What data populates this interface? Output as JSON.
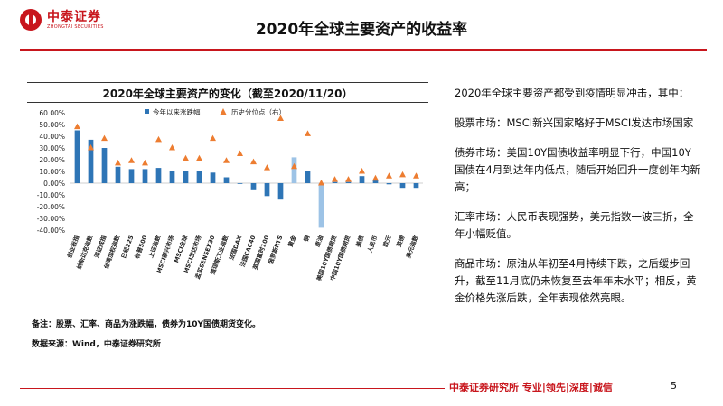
{
  "header": {
    "brand_cn": "中泰证券",
    "brand_en": "ZHONGTAI SECURITIES",
    "title": "2020年全球主要资产的收益率"
  },
  "chart_meta": {
    "title": "2020年全球主要资产的变化（截至2020/11/20）",
    "legend_bar": "今年以来涨跌幅",
    "legend_point": "历史分位点（右）",
    "note": "备注：股票、汇率、商品为涨跌幅，债券为10Y国债期货变化。",
    "source": "数据来源：Wind，中泰证券研究所"
  },
  "chart_data": {
    "type": "bar",
    "title": "2020年全球主要资产的变化（截至2020/11/20）",
    "categories": [
      "创业板指",
      "纳斯达克指数",
      "深证成指",
      "台湾加权指数",
      "日经225",
      "标普500",
      "上证指数",
      "MSCI新兴市场",
      "MSCI全球",
      "MSCI发达市场",
      "孟买SENSEX30",
      "道琼斯工业指数",
      "法国DAX",
      "法国CAC40",
      "英国富时100",
      "俄罗斯RTS",
      "黄金",
      "铜",
      "原油",
      "美国10Y国债期货",
      "中国10Y国债期货",
      "美债",
      "人民币",
      "欧元",
      "英镑",
      "美元指数"
    ],
    "series": [
      {
        "name": "今年以来涨跌幅",
        "type": "bar",
        "axis": "left",
        "values": [
          0.45,
          0.37,
          0.3,
          0.14,
          0.12,
          0.12,
          0.13,
          0.1,
          0.1,
          0.1,
          0.09,
          0.05,
          0.0,
          -0.06,
          -0.11,
          -0.14,
          0.22,
          0.1,
          -0.38,
          0.01,
          0.01,
          0.06,
          0.03,
          -0.01,
          -0.04,
          -0.04
        ]
      },
      {
        "name": "历史分位点（右）",
        "type": "scatter",
        "axis": "right",
        "values": [
          0.48,
          0.3,
          0.38,
          0.17,
          0.19,
          0.17,
          0.37,
          0.3,
          0.21,
          0.21,
          0.38,
          0.19,
          0.25,
          0.18,
          0.13,
          0.55,
          0.14,
          0.42,
          0.0,
          0.03,
          0.03,
          0.1,
          0.04,
          0.06,
          0.07,
          0.06
        ]
      }
    ],
    "ylim": [
      -0.4,
      0.6
    ],
    "yticks": [
      -0.4,
      -0.3,
      -0.2,
      -0.1,
      0.0,
      0.1,
      0.2,
      0.3,
      0.4,
      0.5,
      0.6
    ],
    "ytick_labels": [
      "-40.00%",
      "-30.00%",
      "-20.00%",
      "-10.00%",
      "0.00%",
      "10.00%",
      "20.00%",
      "30.00%",
      "40.00%",
      "50.00%",
      "60.00%"
    ],
    "colors": {
      "bar": "#2e75b6",
      "bar_highlight": "#9dc3e6",
      "point": "#ed7d31"
    },
    "highlight_bars": [
      "黄金",
      "原油"
    ],
    "legend_position": "top"
  },
  "sidebar": {
    "paragraphs": [
      "2020年全球主要资产都受到疫情明显冲击，其中：",
      "股票市场：MSCI新兴国家略好于MSCI发达市场国家",
      "债券市场：美国10Y国债收益率明显下行，中国10Y国债在4月到达年内低点，随后开始回升一度创年内新高；",
      "汇率市场：人民币表现强势，美元指数一波三折，全年小幅贬值。",
      "商品市场：原油从年初至4月持续下跌，之后缓步回升，截至11月底仍未恢复至去年年末水平；相反，黄金价格先涨后跌，全年表现依然亮眼。"
    ]
  },
  "footer": {
    "brand": "中泰证券研究所 专业|领先|深度|诚信",
    "page": "5"
  }
}
